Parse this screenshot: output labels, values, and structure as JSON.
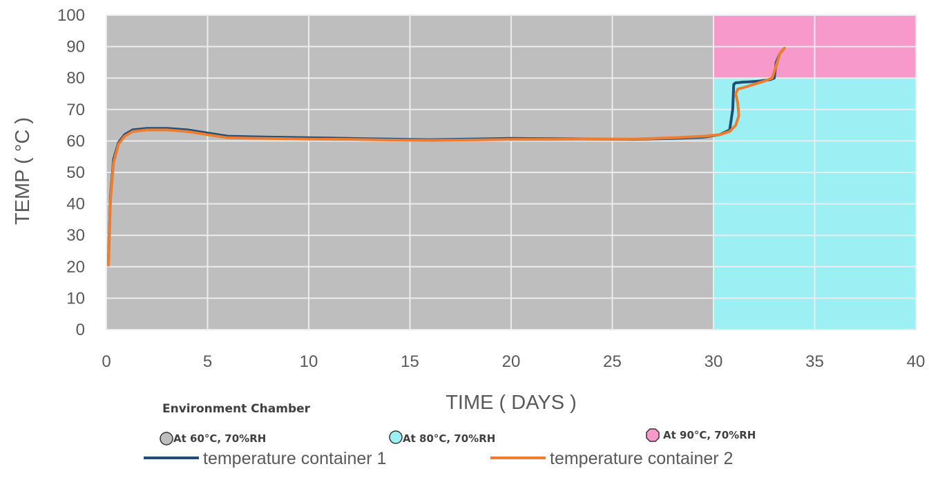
{
  "chart_data": {
    "type": "line",
    "xlabel": "TIME ( DAYS )",
    "ylabel": "TEMP ( °C )",
    "xlim": [
      0,
      40
    ],
    "ylim": [
      0,
      100
    ],
    "x_ticks": [
      "0",
      "5",
      "10",
      "15",
      "20",
      "25",
      "30",
      "35",
      "40"
    ],
    "y_ticks": [
      "0",
      "10",
      "20",
      "30",
      "40",
      "50",
      "60",
      "70",
      "80",
      "90",
      "100"
    ],
    "grid": true,
    "background_regions": [
      {
        "label": "At 60°C, 70%RH",
        "color": "#bebebe",
        "x_range": [
          0,
          30
        ],
        "y_range": [
          0,
          100
        ]
      },
      {
        "label": "At 80°C, 70%RH",
        "color": "#9cf0f4",
        "x_range": [
          30,
          40
        ],
        "y_range": [
          0,
          80
        ]
      },
      {
        "label": "At 90°C, 70%RH",
        "color": "#f79acb",
        "x_range": [
          30,
          40
        ],
        "y_range": [
          80,
          100
        ]
      }
    ],
    "environment_legend_title": "Environment Chamber",
    "series": [
      {
        "name": "temperature container 1",
        "color": "#1f4e79",
        "x": [
          0.1,
          0.2,
          0.35,
          0.6,
          0.9,
          1.3,
          2.0,
          3.0,
          4.0,
          5.0,
          6.0,
          8.0,
          10.0,
          12.0,
          14.0,
          16.0,
          18.0,
          20.0,
          22.0,
          24.0,
          26.0,
          28.0,
          29.5,
          30.3,
          30.8,
          30.95,
          31.0,
          31.1,
          31.3,
          31.4,
          31.7,
          32.2,
          32.8,
          33.0,
          33.1,
          33.3,
          33.5
        ],
        "y": [
          21,
          42,
          54,
          59.5,
          62,
          63.5,
          64,
          64,
          63.5,
          62.5,
          61.5,
          61.2,
          61,
          60.8,
          60.6,
          60.4,
          60.6,
          60.8,
          60.7,
          60.6,
          60.5,
          60.8,
          61.2,
          62,
          63.5,
          70,
          78,
          78.5,
          78.6,
          78.7,
          78.8,
          79,
          79.5,
          80,
          85,
          88,
          89.5
        ]
      },
      {
        "name": "temperature container 2",
        "color": "#ed7d31",
        "x": [
          0.1,
          0.2,
          0.35,
          0.6,
          0.9,
          1.3,
          2.0,
          3.0,
          4.0,
          5.0,
          6.0,
          8.0,
          10.0,
          12.0,
          14.0,
          16.0,
          18.0,
          20.0,
          22.0,
          24.0,
          26.0,
          28.0,
          29.5,
          30.3,
          30.8,
          31.1,
          31.25,
          31.2,
          31.1,
          31.2,
          31.5,
          32.0,
          32.5,
          32.9,
          33.1,
          33.3,
          33.5
        ],
        "y": [
          20.5,
          41,
          53,
          59,
          61.5,
          63,
          63.5,
          63.5,
          63,
          62,
          61,
          60.8,
          60.6,
          60.5,
          60.3,
          60.2,
          60.3,
          60.5,
          60.5,
          60.6,
          60.6,
          61,
          61.5,
          62,
          63,
          65,
          68,
          72,
          75,
          76.5,
          77,
          78,
          79,
          80,
          84,
          88,
          89.5
        ]
      }
    ]
  }
}
